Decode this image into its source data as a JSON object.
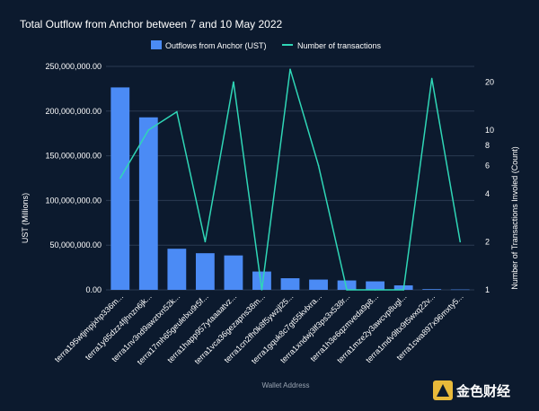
{
  "chart_data": {
    "type": "bar",
    "title": "Total Outflow from Anchor between 7 and 10 May 2022",
    "xlabel": "Wallet Address",
    "ylabel": "UST (Millions)",
    "y2label": "Number of Transactions Involed (Count)",
    "ylim": [
      0,
      250000000
    ],
    "yticks": [
      "0.00",
      "50,000,000.00",
      "100,000,000.00",
      "150,000,000.00",
      "200,000,000.00",
      "250,000,000.00"
    ],
    "y2_scale": "log",
    "y2ticks": [
      "1",
      "2",
      "4",
      "6",
      "8",
      "10",
      "20"
    ],
    "legend_position": "top",
    "colors": {
      "bar": "#4b8bf5",
      "line": "#2fd6b6",
      "background": "#0c1a2e",
      "grid": "#2a3a52"
    },
    "categories": [
      "terra195wtjmpjxhp336m...",
      "terra1y85dzz4fjhnzn6jk...",
      "terra1nv3nd9awztxn52k...",
      "terra17mh65geulelxu9r5f...",
      "terra1happ957ytaaaatvz...",
      "terra1vca36gezapns38m...",
      "terra1cn2fh0k8f5ywzjl25...",
      "terra1gquk8c7gt55kvlxra...",
      "terra1xndwj3lf3ps3x538r...",
      "terra1h3e6qzmveda9p8...",
      "terra1mze2y3awcvp8ugl...",
      "terra1mdv9ltx9t5wxq22v...",
      "terra1cwa897x96mxty5..."
    ],
    "series": [
      {
        "name": "Outflows from Anchor (UST)",
        "type": "bar",
        "axis": "left",
        "values": [
          226500000,
          193000000,
          46000000,
          41000000,
          38500000,
          20500000,
          13000000,
          11500000,
          10500000,
          9500000,
          5000000,
          800000,
          400000
        ]
      },
      {
        "name": "Number of transactions",
        "type": "line",
        "axis": "right",
        "values": [
          5,
          10,
          13,
          2,
          20,
          1,
          24,
          6,
          1,
          1,
          1,
          21,
          2
        ]
      }
    ]
  },
  "watermark": {
    "text": "金色财经"
  }
}
